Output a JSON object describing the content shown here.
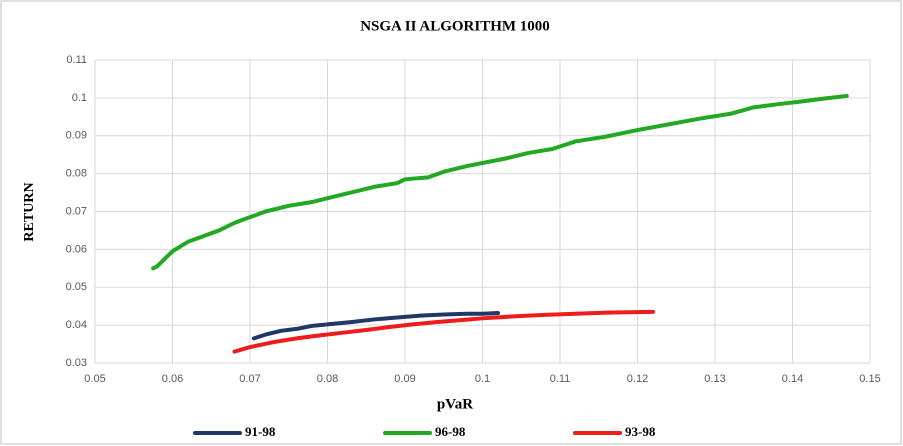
{
  "chart_data": {
    "type": "line",
    "title": "NSGA II ALGORITHM 1000",
    "x_label": "pVaR",
    "y_label": "RETURN",
    "xlim": [
      0.05,
      0.15
    ],
    "xticks": [
      0.05,
      0.06,
      0.07,
      0.08,
      0.09,
      0.1,
      0.11,
      0.12,
      0.13,
      0.14,
      0.15
    ],
    "ylim": [
      0.03,
      0.11
    ],
    "yticks": [
      0.03,
      0.04,
      0.05,
      0.06,
      0.07,
      0.08,
      0.09,
      0.1,
      0.11
    ],
    "grid": true,
    "legend": "bottom",
    "series": [
      {
        "name": "91-98",
        "color": "#1f3864",
        "x": [
          0.0705,
          0.072,
          0.074,
          0.076,
          0.078,
          0.08,
          0.083,
          0.086,
          0.089,
          0.092,
          0.095,
          0.098,
          0.1,
          0.102
        ],
        "values": [
          0.0365,
          0.0375,
          0.0385,
          0.039,
          0.0398,
          0.0402,
          0.0408,
          0.0415,
          0.042,
          0.0425,
          0.0428,
          0.043,
          0.043,
          0.0432
        ]
      },
      {
        "name": "96-98",
        "color": "#22a822",
        "x": [
          0.0575,
          0.058,
          0.059,
          0.06,
          0.062,
          0.064,
          0.066,
          0.068,
          0.07,
          0.072,
          0.075,
          0.078,
          0.08,
          0.083,
          0.086,
          0.089,
          0.09,
          0.093,
          0.095,
          0.098,
          0.1,
          0.103,
          0.106,
          0.109,
          0.112,
          0.116,
          0.12,
          0.124,
          0.128,
          0.132,
          0.135,
          0.138,
          0.141,
          0.144,
          0.147
        ],
        "values": [
          0.055,
          0.0555,
          0.0575,
          0.0595,
          0.062,
          0.0635,
          0.065,
          0.067,
          0.0685,
          0.07,
          0.0715,
          0.0725,
          0.0735,
          0.075,
          0.0765,
          0.0775,
          0.0785,
          0.079,
          0.0805,
          0.082,
          0.0828,
          0.084,
          0.0855,
          0.0865,
          0.0885,
          0.0898,
          0.0915,
          0.093,
          0.0945,
          0.0958,
          0.0975,
          0.0983,
          0.099,
          0.0998,
          0.1005
        ]
      },
      {
        "name": "93-98",
        "color": "#ee1c1c",
        "x": [
          0.068,
          0.07,
          0.073,
          0.076,
          0.079,
          0.082,
          0.085,
          0.088,
          0.091,
          0.094,
          0.097,
          0.1,
          0.104,
          0.108,
          0.112,
          0.116,
          0.122
        ],
        "values": [
          0.033,
          0.0342,
          0.0355,
          0.0365,
          0.0373,
          0.038,
          0.0387,
          0.0395,
          0.0402,
          0.0408,
          0.0413,
          0.0418,
          0.0423,
          0.0427,
          0.043,
          0.0433,
          0.0435
        ]
      }
    ]
  }
}
